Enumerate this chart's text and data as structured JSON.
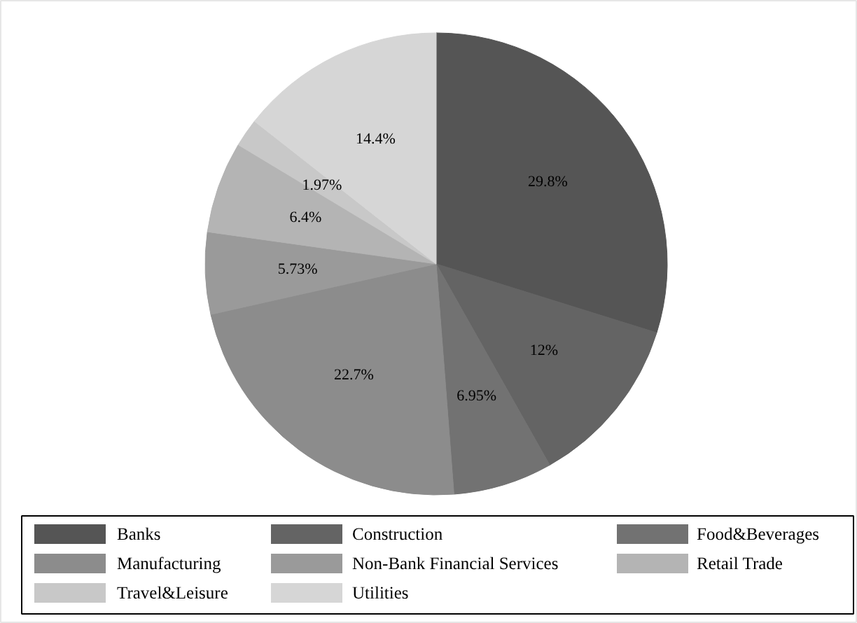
{
  "chart_data": {
    "type": "pie",
    "categories": [
      "Banks",
      "Construction",
      "Food&Beverages",
      "Manufacturing",
      "Non-Bank Financial Services",
      "Retail Trade",
      "Travel&Leisure",
      "Utilities"
    ],
    "values": [
      29.8,
      12,
      6.95,
      22.7,
      5.73,
      6.4,
      1.97,
      14.4
    ],
    "colors": [
      "#555555",
      "#646464",
      "#727272",
      "#8c8c8c",
      "#9a9a9a",
      "#b4b4b4",
      "#c8c8c8",
      "#d6d6d6"
    ],
    "value_labels": [
      "29.8%",
      "12%",
      "6.95%",
      "22.7%",
      "5.73%",
      "6.4%",
      "1.97%",
      "14.4%"
    ],
    "legend": "bottom"
  }
}
